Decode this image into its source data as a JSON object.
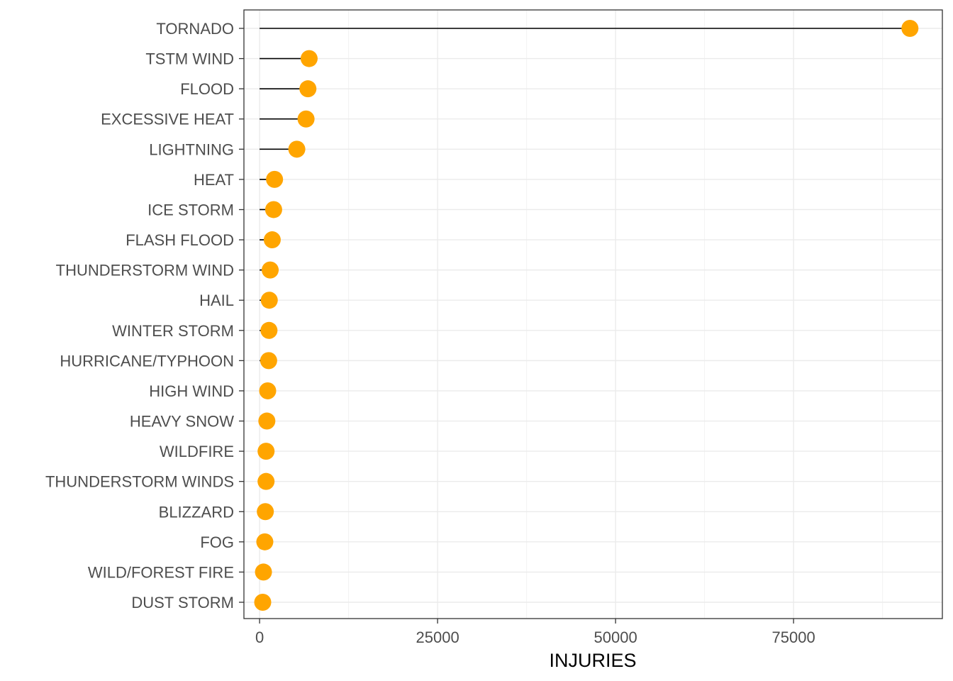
{
  "chart_data": {
    "type": "lollipop",
    "title": "",
    "xlabel": "INJURIES",
    "ylabel": "",
    "xlim": [
      -2200,
      95900
    ],
    "xticks": [
      0,
      25000,
      50000,
      75000
    ],
    "xtick_labels": [
      "0",
      "25000",
      "50000",
      "75000"
    ],
    "grid": true,
    "point_color": "#ffa500",
    "stem_color": "#000000",
    "categories": [
      "TORNADO",
      "TSTM WIND",
      "FLOOD",
      "EXCESSIVE HEAT",
      "LIGHTNING",
      "HEAT",
      "ICE STORM",
      "FLASH FLOOD",
      "THUNDERSTORM WIND",
      "HAIL",
      "WINTER STORM",
      "HURRICANE/TYPHOON",
      "HIGH WIND",
      "HEAVY SNOW",
      "WILDFIRE",
      "THUNDERSTORM WINDS",
      "BLIZZARD",
      "FOG",
      "WILD/FOREST FIRE",
      "DUST STORM"
    ],
    "values": [
      91346,
      6957,
      6789,
      6525,
      5230,
      2100,
      1975,
      1777,
      1488,
      1361,
      1321,
      1275,
      1137,
      1021,
      911,
      908,
      805,
      734,
      545,
      440
    ]
  }
}
